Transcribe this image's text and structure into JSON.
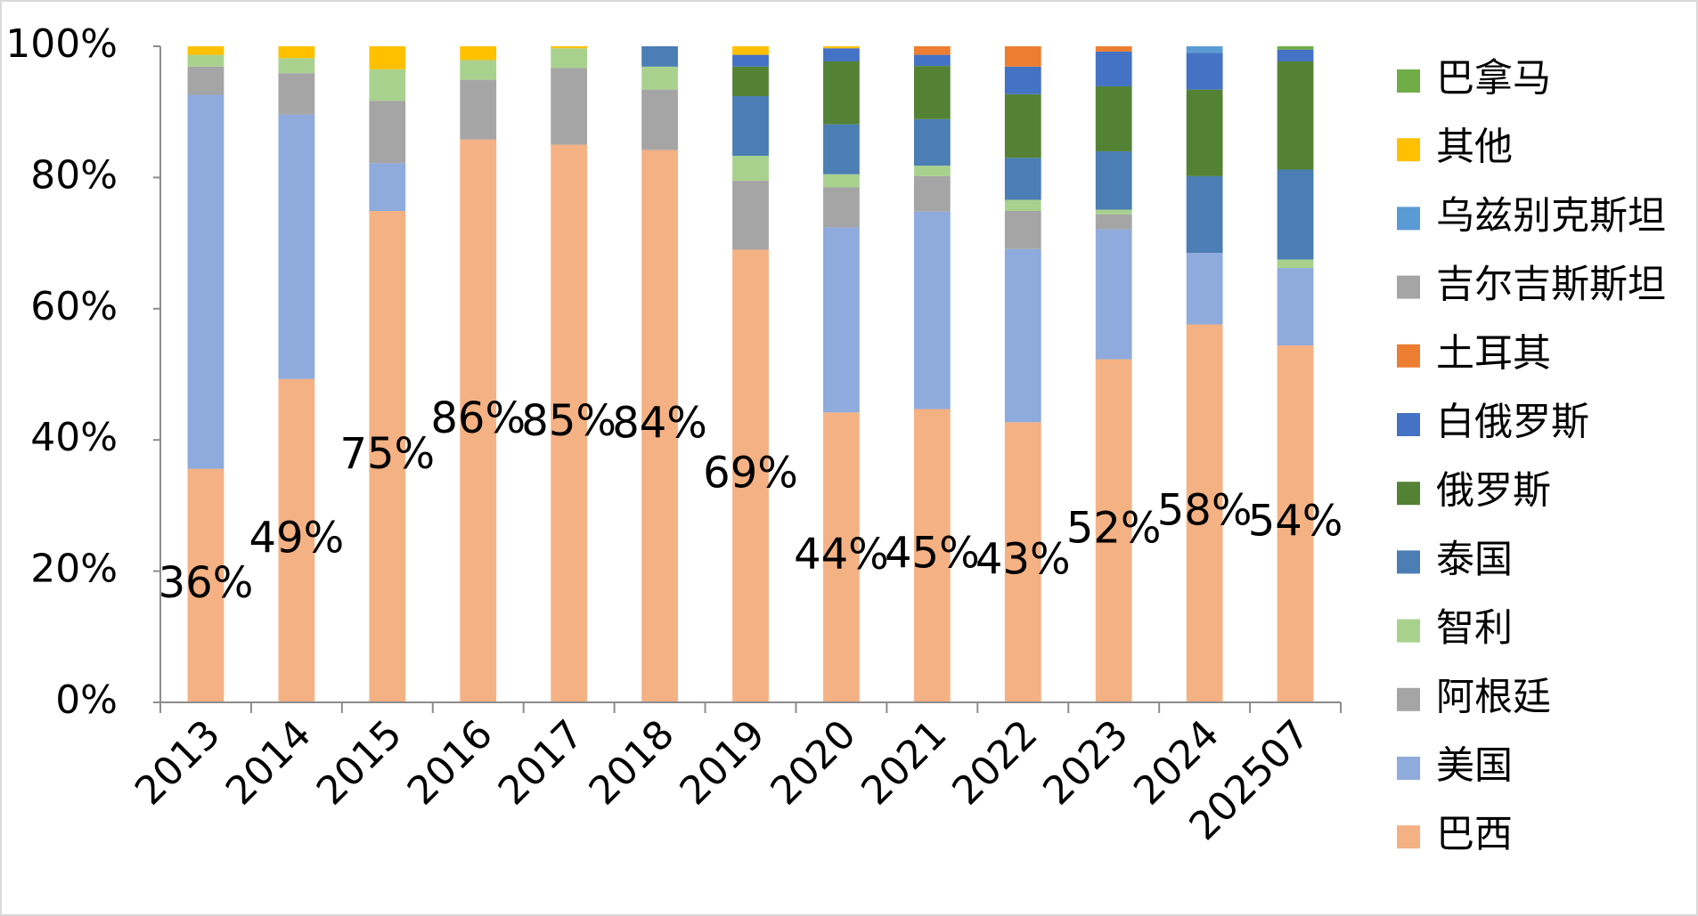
{
  "chart_data": {
    "type": "stacked_bar",
    "categories": [
      "2013",
      "2014",
      "2015",
      "2016",
      "2017",
      "2018",
      "2019",
      "2020",
      "2021",
      "2022",
      "2023",
      "2024",
      "202507"
    ],
    "series": [
      {
        "name": "巴西",
        "color": "#f4b183",
        "values": [
          35.6,
          49.3,
          74.9,
          85.8,
          85.0,
          84.2,
          69.0,
          44.2,
          44.7,
          42.7,
          52.3,
          57.6,
          54.4
        ],
        "value_labels": [
          "36%",
          "49%",
          "75%",
          "86%",
          "85%",
          "84%",
          "69%",
          "44%",
          "45%",
          "43%",
          "52%",
          "58%",
          "54%"
        ]
      },
      {
        "name": "美国",
        "color": "#8faadc",
        "values": [
          57.0,
          40.3,
          7.3,
          0,
          0,
          0,
          0,
          28.2,
          30.1,
          26.4,
          19.8,
          10.9,
          11.8
        ]
      },
      {
        "name": "阿根廷",
        "color": "#a5a5a5",
        "values": [
          4.3,
          6.3,
          9.5,
          9.1,
          11.7,
          9.2,
          10.5,
          6.1,
          5.4,
          5.8,
          2.3,
          0,
          0
        ]
      },
      {
        "name": "智利",
        "color": "#a9d18e",
        "values": [
          1.8,
          2.3,
          4.8,
          3.0,
          3.0,
          3.5,
          3.8,
          2.0,
          1.6,
          1.7,
          0.7,
          0,
          1.3
        ]
      },
      {
        "name": "泰国",
        "color": "#4a7eb4",
        "values": [
          0,
          0,
          0,
          0,
          0,
          3.1,
          9.1,
          7.6,
          7.1,
          6.4,
          8.9,
          11.7,
          13.7
        ]
      },
      {
        "name": "俄罗斯",
        "color": "#548235",
        "values": [
          0,
          0,
          0,
          0,
          0,
          0,
          4.5,
          9.6,
          8.1,
          9.7,
          9.9,
          13.2,
          16.5
        ]
      },
      {
        "name": "白俄罗斯",
        "color": "#4472c4",
        "values": [
          0,
          0,
          0,
          0,
          0,
          0,
          1.8,
          2.0,
          1.7,
          4.2,
          5.3,
          5.6,
          1.8
        ]
      },
      {
        "name": "土耳其",
        "color": "#ed7d31",
        "values": [
          0,
          0,
          0,
          0,
          0,
          0,
          0,
          0,
          1.3,
          3.1,
          0.8,
          0,
          0
        ]
      },
      {
        "name": "吉尔吉斯斯坦",
        "color": "#a5a5a5",
        "values": [
          0,
          0,
          0,
          0,
          0,
          0,
          0,
          0,
          0,
          0,
          0,
          0,
          0
        ]
      },
      {
        "name": "乌兹别克斯坦",
        "color": "#5b9bd5",
        "values": [
          0,
          0,
          0,
          0,
          0,
          0,
          0,
          0,
          0,
          0,
          0,
          1.0,
          0
        ]
      },
      {
        "name": "其他",
        "color": "#ffc000",
        "values": [
          1.3,
          1.8,
          3.5,
          2.1,
          0.3,
          0,
          1.3,
          0.3,
          0,
          0,
          0,
          0,
          0
        ]
      },
      {
        "name": "巴拿马",
        "color": "#70ad47",
        "values": [
          0,
          0,
          0,
          0,
          0,
          0,
          0,
          0,
          0,
          0,
          0,
          0,
          0.5
        ]
      }
    ],
    "ylim": [
      0,
      100
    ],
    "yticks": [
      {
        "value": 0,
        "label": "0%"
      },
      {
        "value": 20,
        "label": "20%"
      },
      {
        "value": 40,
        "label": "40%"
      },
      {
        "value": 60,
        "label": "60%"
      },
      {
        "value": 80,
        "label": "80%"
      },
      {
        "value": 100,
        "label": "100%"
      }
    ],
    "legend": "right"
  }
}
